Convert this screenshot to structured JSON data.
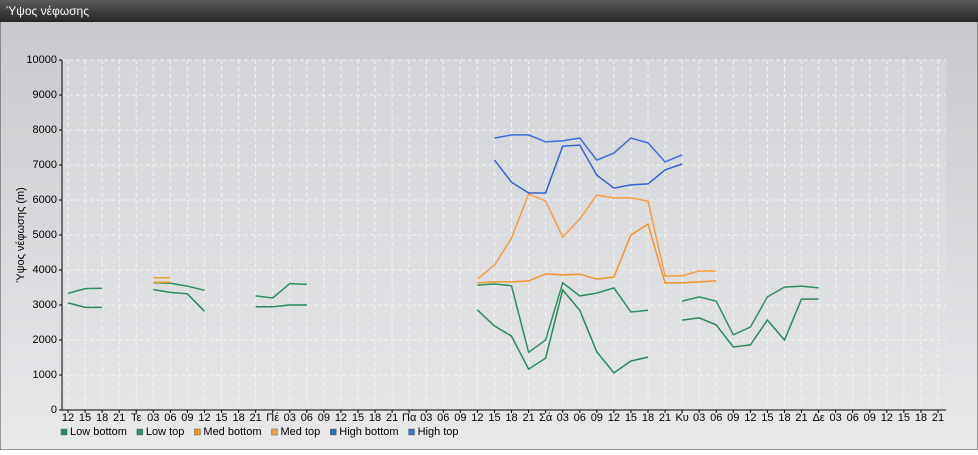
{
  "window_title": "Ύψος νέφωσης",
  "chart_data": {
    "type": "line",
    "y_label": "Ύψος νέφωσης (m)",
    "categories": [
      "12",
      "15",
      "18",
      "21",
      "Τε",
      "03",
      "06",
      "09",
      "12",
      "15",
      "18",
      "21",
      "Πέ",
      "03",
      "06",
      "09",
      "12",
      "15",
      "18",
      "21",
      "Πα",
      "03",
      "06",
      "09",
      "12",
      "15",
      "18",
      "21",
      "Σά",
      "03",
      "06",
      "09",
      "12",
      "15",
      "18",
      "21",
      "Κυ",
      "03",
      "06",
      "09",
      "12",
      "15",
      "18",
      "21",
      "Δε",
      "03",
      "06",
      "09",
      "12",
      "15",
      "18",
      "21"
    ],
    "ylim": [
      0,
      10000
    ],
    "yticks": [
      0,
      1000,
      2000,
      3000,
      4000,
      5000,
      6000,
      7000,
      8000,
      9000,
      10000
    ],
    "grid": true,
    "legend": "bottom",
    "series": [
      {
        "name": "Low bottom",
        "color": "#2a8a58",
        "values": [
          3060,
          2930,
          2930,
          null,
          null,
          3440,
          3360,
          3320,
          2820,
          null,
          null,
          2950,
          2950,
          3000,
          3000,
          null,
          null,
          null,
          null,
          null,
          null,
          null,
          null,
          null,
          2860,
          2400,
          2110,
          1170,
          1480,
          3430,
          2850,
          1660,
          1060,
          1400,
          1510,
          null,
          2570,
          2630,
          2430,
          1800,
          1860,
          2570,
          2000,
          3170,
          3170,
          null,
          null,
          null,
          null,
          null,
          null,
          null
        ]
      },
      {
        "name": "Low top",
        "color": "#2e9060",
        "values": [
          3330,
          3470,
          3480,
          null,
          null,
          3640,
          3620,
          3540,
          3420,
          null,
          null,
          3260,
          3200,
          3610,
          3590,
          null,
          null,
          null,
          null,
          null,
          null,
          null,
          null,
          null,
          3570,
          3600,
          3550,
          1650,
          2000,
          3630,
          3260,
          3340,
          3490,
          2800,
          2850,
          null,
          3110,
          3230,
          3110,
          2150,
          2370,
          3230,
          3510,
          3540,
          3490,
          null,
          null,
          null,
          null,
          null,
          null,
          null
        ]
      },
      {
        "name": "Med bottom",
        "color": "#f0962f",
        "values": [
          null,
          null,
          null,
          null,
          null,
          3650,
          3650,
          null,
          null,
          null,
          null,
          null,
          null,
          null,
          null,
          null,
          null,
          null,
          null,
          null,
          null,
          null,
          null,
          null,
          3630,
          3660,
          3660,
          3690,
          3890,
          3860,
          3880,
          3740,
          3800,
          5000,
          5310,
          3630,
          3630,
          3660,
          3690,
          null,
          null,
          null,
          null,
          null,
          null,
          null,
          null,
          null,
          null,
          null,
          null,
          null
        ]
      },
      {
        "name": "Med top",
        "color": "#f5a040",
        "values": [
          null,
          null,
          null,
          null,
          null,
          3780,
          3780,
          null,
          null,
          null,
          null,
          null,
          null,
          null,
          null,
          null,
          null,
          null,
          null,
          null,
          null,
          null,
          null,
          null,
          3740,
          4140,
          4910,
          6170,
          5970,
          4940,
          5460,
          6140,
          6060,
          6060,
          5970,
          3830,
          3830,
          3970,
          3970,
          null,
          null,
          null,
          null,
          null,
          null,
          null,
          null,
          null,
          null,
          null,
          null,
          null
        ]
      },
      {
        "name": "High bottom",
        "color": "#3463d6",
        "values": [
          null,
          null,
          null,
          null,
          null,
          null,
          null,
          null,
          null,
          null,
          null,
          null,
          null,
          null,
          null,
          null,
          null,
          null,
          null,
          null,
          null,
          null,
          null,
          null,
          null,
          7140,
          6510,
          6200,
          6200,
          7540,
          7570,
          6710,
          6340,
          6430,
          6460,
          6860,
          7030,
          null,
          null,
          null,
          null,
          null,
          null,
          null,
          null,
          null,
          null,
          null,
          null,
          null,
          null,
          null
        ]
      },
      {
        "name": "High top",
        "color": "#3b6ce0",
        "values": [
          null,
          null,
          null,
          null,
          null,
          null,
          null,
          null,
          null,
          null,
          null,
          null,
          null,
          null,
          null,
          null,
          null,
          null,
          null,
          null,
          null,
          null,
          null,
          null,
          null,
          7770,
          7860,
          7860,
          7660,
          7690,
          7770,
          7140,
          7340,
          7770,
          7630,
          7090,
          7290,
          null,
          null,
          null,
          null,
          null,
          null,
          null,
          null,
          null,
          null,
          null,
          null,
          null,
          null,
          null
        ]
      }
    ]
  }
}
